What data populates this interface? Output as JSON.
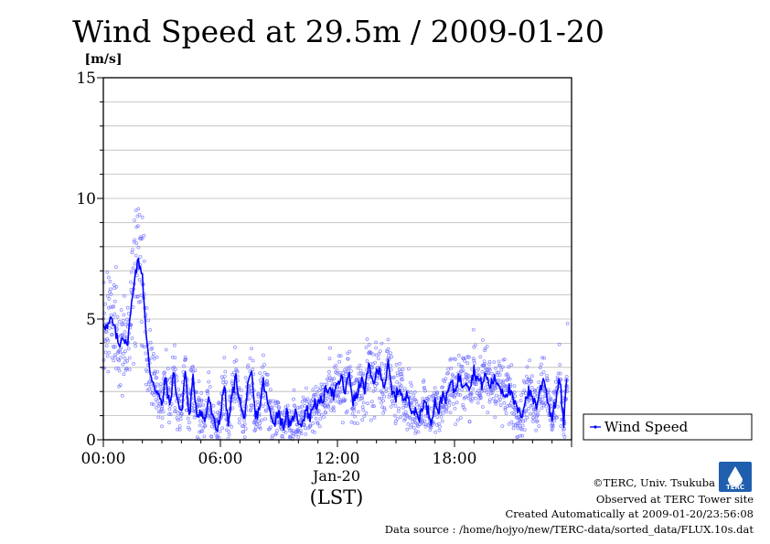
{
  "chart_data": {
    "type": "line",
    "title": "Wind Speed at 29.5m / 2009-01-20",
    "ylabel_unit": "[m/s]",
    "xlabel": "(LST)",
    "x_date_label": "Jan-20",
    "ylim": [
      0,
      15
    ],
    "y_ticks": [
      {
        "value": 0,
        "label": "0"
      },
      {
        "value": 5,
        "label": "5"
      },
      {
        "value": 10,
        "label": "10"
      },
      {
        "value": 15,
        "label": "15"
      }
    ],
    "y_grid_values": [
      1,
      2,
      3,
      4,
      5,
      6,
      7,
      8,
      9,
      10,
      11,
      12,
      13,
      14,
      15
    ],
    "xlim_hours": [
      0,
      24
    ],
    "x_ticks": [
      {
        "hour": 0,
        "label": "00:00"
      },
      {
        "hour": 6,
        "label": "06:00"
      },
      {
        "hour": 12,
        "label": "12:00"
      },
      {
        "hour": 18,
        "label": "18:00"
      }
    ],
    "grid": "horizontal",
    "legend_position": "right",
    "series": [
      {
        "name": "Wind Speed",
        "style": "line with scatter of raw samples",
        "color": "#0000ff",
        "scatter_color": "#6b6bff",
        "hours": [
          0.0,
          0.2,
          0.4,
          0.6,
          0.8,
          1.0,
          1.2,
          1.4,
          1.6,
          1.8,
          2.0,
          2.2,
          2.4,
          2.6,
          2.8,
          3.0,
          3.2,
          3.4,
          3.6,
          3.8,
          4.0,
          4.2,
          4.4,
          4.6,
          4.8,
          5.0,
          5.2,
          5.4,
          5.6,
          5.8,
          6.0,
          6.2,
          6.4,
          6.6,
          6.8,
          7.0,
          7.2,
          7.4,
          7.6,
          7.8,
          8.0,
          8.2,
          8.4,
          8.6,
          8.8,
          9.0,
          9.2,
          9.4,
          9.6,
          9.8,
          10.0,
          10.2,
          10.4,
          10.6,
          10.8,
          11.0,
          11.2,
          11.4,
          11.6,
          11.8,
          12.0,
          12.2,
          12.4,
          12.6,
          12.8,
          13.0,
          13.2,
          13.4,
          13.6,
          13.8,
          14.0,
          14.2,
          14.4,
          14.6,
          14.8,
          15.0,
          15.2,
          15.4,
          15.6,
          15.8,
          16.0,
          16.2,
          16.4,
          16.6,
          16.8,
          17.0,
          17.2,
          17.4,
          17.6,
          17.8,
          18.0,
          18.2,
          18.4,
          18.6,
          18.8,
          19.0,
          19.2,
          19.4,
          19.6,
          19.8,
          20.0,
          20.2,
          20.4,
          20.6,
          20.8,
          21.0,
          21.2,
          21.4,
          21.6,
          21.8,
          22.0,
          22.2,
          22.4,
          22.6,
          22.8,
          23.0,
          23.2,
          23.4,
          23.6,
          23.8
        ],
        "values": [
          4.9,
          4.6,
          5.0,
          4.5,
          3.9,
          4.4,
          3.8,
          5.2,
          6.8,
          7.4,
          6.9,
          4.2,
          2.8,
          2.3,
          1.9,
          1.4,
          2.6,
          1.3,
          2.8,
          1.7,
          1.0,
          2.9,
          0.9,
          2.5,
          1.1,
          1.2,
          0.7,
          1.8,
          0.9,
          0.4,
          1.0,
          2.3,
          0.6,
          1.8,
          2.6,
          1.6,
          0.8,
          2.1,
          2.7,
          0.9,
          1.3,
          2.4,
          1.6,
          0.9,
          0.8,
          1.2,
          0.5,
          1.1,
          0.4,
          1.2,
          0.8,
          0.7,
          1.3,
          0.9,
          1.6,
          1.4,
          1.6,
          2.0,
          2.3,
          1.8,
          2.2,
          2.6,
          1.9,
          2.8,
          1.6,
          1.8,
          2.5,
          2.1,
          3.0,
          2.4,
          2.7,
          2.9,
          2.2,
          3.1,
          1.9,
          1.8,
          2.2,
          1.5,
          1.9,
          1.3,
          1.1,
          0.9,
          1.6,
          1.3,
          0.8,
          1.6,
          1.2,
          1.9,
          1.7,
          2.4,
          2.0,
          2.6,
          2.3,
          2.5,
          2.2,
          2.9,
          2.5,
          2.3,
          2.7,
          2.2,
          2.5,
          2.4,
          2.1,
          1.9,
          2.1,
          1.6,
          1.3,
          0.9,
          1.6,
          2.0,
          1.8,
          1.4,
          2.1,
          2.6,
          1.5,
          0.9,
          1.7,
          2.5,
          0.6,
          3.1
        ]
      }
    ]
  },
  "footer": {
    "copyright": "©TERC, Univ. Tsukuba",
    "observed": "Observed at TERC Tower site",
    "created": "Created Automatically at 2009-01-20/23:56:08",
    "source": "Data source : /home/hojyo/new/TERC-data/sorted_data/FLUX.10s.dat",
    "logo_text": "TERC"
  }
}
